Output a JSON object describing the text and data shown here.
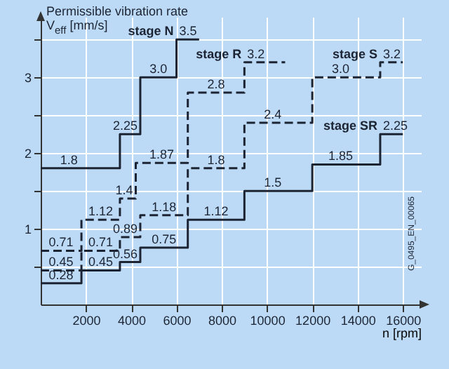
{
  "chart_data": {
    "type": "step",
    "ylabel": "Permissible vibration rate\nV$_{eff}$ [mm/s]",
    "xlabel": "n [rpm]",
    "annotations": [
      "G_0495_EN_00065"
    ],
    "xlim": [
      0,
      16800
    ],
    "xticks": [
      2000,
      4000,
      6000,
      8000,
      10000,
      12000,
      14000,
      16000
    ],
    "ylim": [
      0,
      3.8
    ],
    "yticks": [
      {
        "value": 0.5,
        "label": null
      },
      1,
      {
        "value": 1.5,
        "label": null
      },
      2,
      {
        "value": 2.5,
        "label": null
      },
      3,
      {
        "value": 3.5,
        "label": null
      }
    ],
    "grid": true,
    "series": [
      {
        "name": "stage N",
        "color": "#1c2433",
        "line_style": "solid",
        "x": [
          0,
          3500,
          4400,
          6000,
          7000
        ],
        "values": [
          1.8,
          2.25,
          3.0,
          3.5,
          3.5
        ],
        "value_labels": [
          "1.8",
          "2.25",
          "3.0",
          "3.5",
          null
        ]
      },
      {
        "name": "stage R",
        "color": "#1c2433",
        "line_style": "dashed",
        "x": [
          0,
          1800,
          3500,
          4200,
          6500,
          9000,
          10800
        ],
        "values": [
          0.71,
          1.12,
          1.4,
          1.87,
          2.8,
          3.2,
          3.2
        ],
        "value_labels": [
          "0.71",
          "1.12",
          "1.4",
          "1.87",
          "2.8",
          "3.2",
          null
        ]
      },
      {
        "name": "stage S",
        "color": "#1c2433",
        "line_style": "dashed",
        "x": [
          0,
          1800,
          3500,
          4400,
          6500,
          9000,
          12000,
          15000,
          16000
        ],
        "values": [
          0.45,
          0.71,
          0.89,
          1.18,
          1.8,
          2.4,
          3.0,
          3.2,
          3.2
        ],
        "value_labels": [
          "0.45",
          "0.71",
          "0.89",
          "1.18",
          "1.8",
          "2.4",
          "3.0",
          "3.2",
          null
        ]
      },
      {
        "name": "stage SR",
        "color": "#1c2433",
        "line_style": "solid",
        "x": [
          0,
          1800,
          3500,
          4400,
          6500,
          9000,
          12000,
          15000,
          16000
        ],
        "values": [
          0.28,
          0.45,
          0.56,
          0.75,
          1.12,
          1.5,
          1.85,
          2.25,
          2.25
        ],
        "value_labels": [
          "0.28",
          "0.45",
          "0.56",
          "0.75",
          "1.12",
          "1.5",
          "1.85",
          "2.25",
          null
        ]
      }
    ]
  }
}
